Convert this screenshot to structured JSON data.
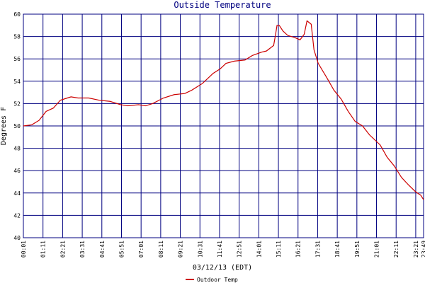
{
  "chart_data": {
    "type": "line",
    "title": "Outside Temperature",
    "x_label": "03/12/13 (EDT)",
    "y_label": "Degrees F",
    "xlim": [
      1,
      1429
    ],
    "xticks": [
      {
        "value": 1,
        "label": "00:01"
      },
      {
        "value": 71,
        "label": "01:11"
      },
      {
        "value": 141,
        "label": "02:21"
      },
      {
        "value": 211,
        "label": "03:31"
      },
      {
        "value": 281,
        "label": "04:41"
      },
      {
        "value": 351,
        "label": "05:51"
      },
      {
        "value": 421,
        "label": "07:01"
      },
      {
        "value": 491,
        "label": "08:11"
      },
      {
        "value": 561,
        "label": "09:21"
      },
      {
        "value": 631,
        "label": "10:31"
      },
      {
        "value": 701,
        "label": "11:41"
      },
      {
        "value": 771,
        "label": "12:51"
      },
      {
        "value": 841,
        "label": "14:01"
      },
      {
        "value": 911,
        "label": "15:11"
      },
      {
        "value": 981,
        "label": "16:21"
      },
      {
        "value": 1051,
        "label": "17:31"
      },
      {
        "value": 1121,
        "label": "18:41"
      },
      {
        "value": 1191,
        "label": "19:51"
      },
      {
        "value": 1261,
        "label": "21:01"
      },
      {
        "value": 1331,
        "label": "22:11"
      },
      {
        "value": 1401,
        "label": "23:21"
      },
      {
        "value": 1429,
        "label": "23:49"
      }
    ],
    "ylim": [
      40,
      60
    ],
    "yticks": [
      40,
      42,
      44,
      46,
      48,
      50,
      52,
      54,
      56,
      58,
      60
    ],
    "grid": true,
    "x": [
      1,
      31,
      57,
      82,
      108,
      133,
      158,
      171,
      196,
      234,
      272,
      310,
      348,
      374,
      412,
      437,
      462,
      501,
      539,
      577,
      602,
      640,
      678,
      703,
      724,
      754,
      792,
      818,
      851,
      868,
      894,
      901,
      906,
      914,
      927,
      944,
      970,
      988,
      1003,
      1013,
      1028,
      1038,
      1053,
      1084,
      1109,
      1135,
      1160,
      1185,
      1211,
      1236,
      1274,
      1299,
      1325,
      1350,
      1376,
      1401,
      1419,
      1429
    ],
    "series": [
      {
        "name": "Outdoor Temp",
        "color": "#cc0000",
        "values": [
          50.0,
          50.1,
          50.5,
          51.3,
          51.6,
          52.3,
          52.5,
          52.6,
          52.5,
          52.5,
          52.3,
          52.2,
          51.9,
          51.8,
          51.9,
          51.8,
          52.0,
          52.5,
          52.8,
          52.9,
          53.2,
          53.8,
          54.7,
          55.1,
          55.6,
          55.8,
          55.9,
          56.3,
          56.6,
          56.7,
          57.2,
          58.2,
          59.0,
          59.0,
          58.5,
          58.1,
          57.9,
          57.7,
          58.2,
          59.4,
          59.1,
          56.8,
          55.6,
          54.3,
          53.2,
          52.4,
          51.3,
          50.4,
          50.0,
          49.2,
          48.3,
          47.2,
          46.4,
          45.4,
          44.7,
          44.1,
          43.8,
          43.4
        ]
      }
    ]
  }
}
